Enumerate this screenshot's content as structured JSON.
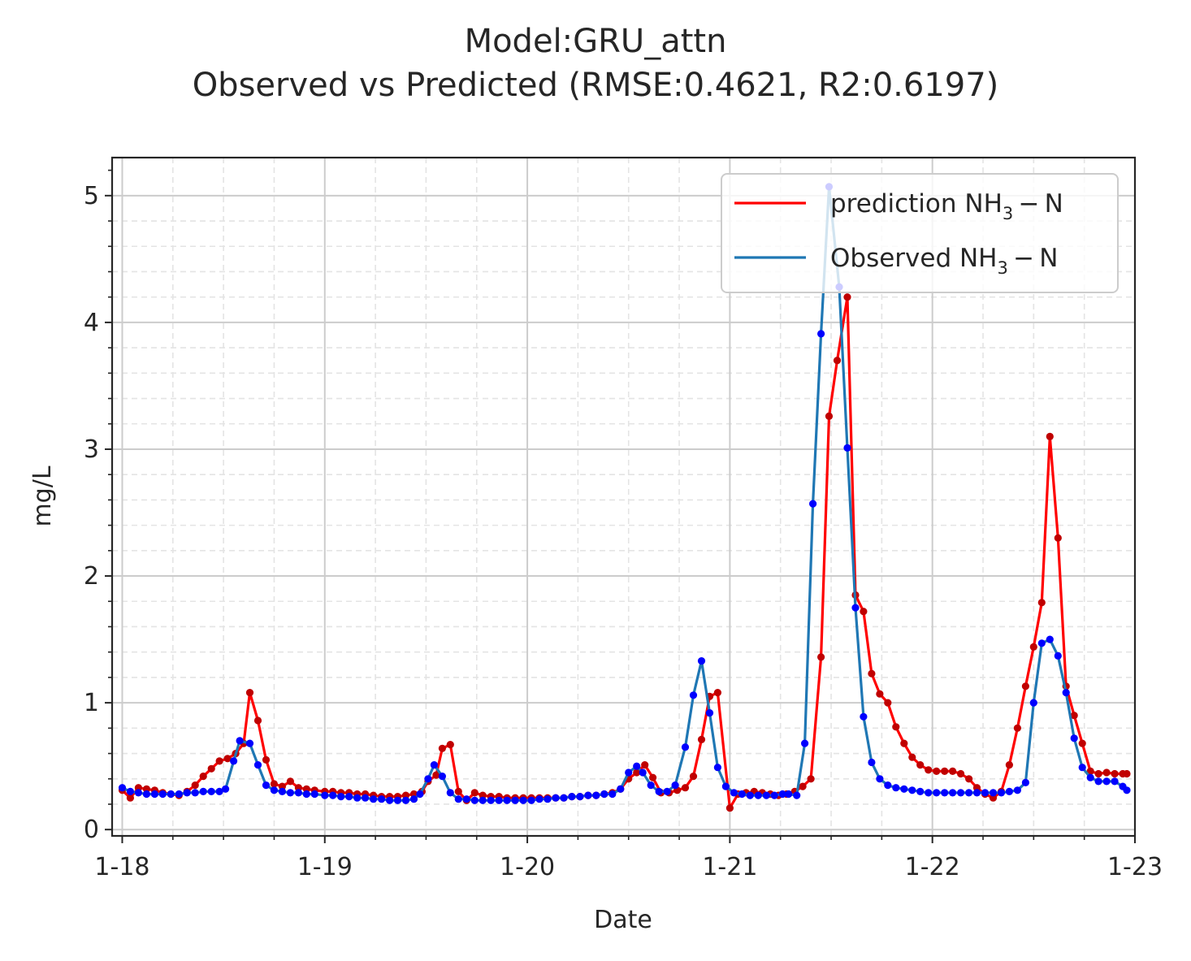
{
  "chart_data": {
    "type": "line",
    "title": "Model:GRU_attn",
    "subtitle": "Observed vs Predicted (RMSE:0.4621, R2:0.6197)",
    "xlabel": "Date",
    "ylabel": "mg/L",
    "x_ticks": [
      "1-18",
      "1-19",
      "1-20",
      "1-21",
      "1-22",
      "1-23"
    ],
    "y_ticks": [
      "0",
      "1",
      "2",
      "3",
      "4",
      "5"
    ],
    "xlim": [
      17.95,
      23.0
    ],
    "ylim": [
      -0.05,
      5.3
    ],
    "grid": true,
    "legend_position": "top-right",
    "series": [
      {
        "name": "prediction NH_3-N",
        "legend_main": "prediction NH",
        "legend_sub": "3",
        "legend_tail": " − N",
        "color": "#ff0000",
        "marker_color": "#c00000",
        "points": [
          [
            18.0,
            0.31
          ],
          [
            18.04,
            0.25
          ],
          [
            18.08,
            0.33
          ],
          [
            18.12,
            0.32
          ],
          [
            18.16,
            0.31
          ],
          [
            18.2,
            0.29
          ],
          [
            18.24,
            0.28
          ],
          [
            18.28,
            0.27
          ],
          [
            18.32,
            0.3
          ],
          [
            18.36,
            0.35
          ],
          [
            18.4,
            0.42
          ],
          [
            18.44,
            0.48
          ],
          [
            18.48,
            0.54
          ],
          [
            18.52,
            0.56
          ],
          [
            18.56,
            0.6
          ],
          [
            18.6,
            0.68
          ],
          [
            18.63,
            1.08
          ],
          [
            18.67,
            0.86
          ],
          [
            18.71,
            0.55
          ],
          [
            18.75,
            0.36
          ],
          [
            18.79,
            0.34
          ],
          [
            18.83,
            0.38
          ],
          [
            18.87,
            0.33
          ],
          [
            18.91,
            0.32
          ],
          [
            18.95,
            0.31
          ],
          [
            19.0,
            0.3
          ],
          [
            19.04,
            0.3
          ],
          [
            19.08,
            0.29
          ],
          [
            19.12,
            0.29
          ],
          [
            19.16,
            0.28
          ],
          [
            19.2,
            0.28
          ],
          [
            19.24,
            0.27
          ],
          [
            19.28,
            0.26
          ],
          [
            19.32,
            0.26
          ],
          [
            19.36,
            0.26
          ],
          [
            19.4,
            0.27
          ],
          [
            19.44,
            0.28
          ],
          [
            19.48,
            0.3
          ],
          [
            19.51,
            0.38
          ],
          [
            19.55,
            0.43
          ],
          [
            19.58,
            0.64
          ],
          [
            19.62,
            0.67
          ],
          [
            19.66,
            0.3
          ],
          [
            19.7,
            0.23
          ],
          [
            19.74,
            0.29
          ],
          [
            19.78,
            0.27
          ],
          [
            19.82,
            0.26
          ],
          [
            19.86,
            0.26
          ],
          [
            19.9,
            0.25
          ],
          [
            19.94,
            0.25
          ],
          [
            19.98,
            0.25
          ],
          [
            20.02,
            0.25
          ],
          [
            20.06,
            0.25
          ],
          [
            20.1,
            0.25
          ],
          [
            20.14,
            0.25
          ],
          [
            20.18,
            0.25
          ],
          [
            20.22,
            0.26
          ],
          [
            20.26,
            0.26
          ],
          [
            20.3,
            0.27
          ],
          [
            20.34,
            0.27
          ],
          [
            20.38,
            0.28
          ],
          [
            20.42,
            0.29
          ],
          [
            20.46,
            0.32
          ],
          [
            20.5,
            0.4
          ],
          [
            20.54,
            0.45
          ],
          [
            20.58,
            0.51
          ],
          [
            20.62,
            0.41
          ],
          [
            20.66,
            0.29
          ],
          [
            20.7,
            0.29
          ],
          [
            20.74,
            0.31
          ],
          [
            20.78,
            0.33
          ],
          [
            20.82,
            0.42
          ],
          [
            20.86,
            0.71
          ],
          [
            20.9,
            1.05
          ],
          [
            20.94,
            1.08
          ],
          [
            21.0,
            0.17
          ],
          [
            21.04,
            0.28
          ],
          [
            21.08,
            0.29
          ],
          [
            21.12,
            0.3
          ],
          [
            21.16,
            0.29
          ],
          [
            21.2,
            0.28
          ],
          [
            21.24,
            0.27
          ],
          [
            21.28,
            0.28
          ],
          [
            21.32,
            0.3
          ],
          [
            21.36,
            0.34
          ],
          [
            21.4,
            0.4
          ],
          [
            21.45,
            1.36
          ],
          [
            21.49,
            3.26
          ],
          [
            21.53,
            3.7
          ],
          [
            21.58,
            4.2
          ],
          [
            21.62,
            1.85
          ],
          [
            21.66,
            1.72
          ],
          [
            21.7,
            1.23
          ],
          [
            21.74,
            1.07
          ],
          [
            21.78,
            1.0
          ],
          [
            21.82,
            0.81
          ],
          [
            21.86,
            0.68
          ],
          [
            21.9,
            0.57
          ],
          [
            21.94,
            0.51
          ],
          [
            21.98,
            0.47
          ],
          [
            22.02,
            0.46
          ],
          [
            22.06,
            0.46
          ],
          [
            22.1,
            0.46
          ],
          [
            22.14,
            0.44
          ],
          [
            22.18,
            0.4
          ],
          [
            22.22,
            0.33
          ],
          [
            22.26,
            0.28
          ],
          [
            22.3,
            0.25
          ],
          [
            22.34,
            0.3
          ],
          [
            22.38,
            0.51
          ],
          [
            22.42,
            0.8
          ],
          [
            22.46,
            1.13
          ],
          [
            22.5,
            1.44
          ],
          [
            22.54,
            1.79
          ],
          [
            22.58,
            3.1
          ],
          [
            22.62,
            2.3
          ],
          [
            22.66,
            1.13
          ],
          [
            22.7,
            0.9
          ],
          [
            22.74,
            0.68
          ],
          [
            22.78,
            0.46
          ],
          [
            22.82,
            0.44
          ],
          [
            22.86,
            0.45
          ],
          [
            22.9,
            0.44
          ],
          [
            22.94,
            0.44
          ],
          [
            22.96,
            0.44
          ]
        ]
      },
      {
        "name": "Observed NH_3-N",
        "legend_main": "Observed NH",
        "legend_sub": "3",
        "legend_tail": " − N",
        "color": "#1f77b4",
        "marker_color": "#0000ff",
        "points": [
          [
            18.0,
            0.33
          ],
          [
            18.04,
            0.3
          ],
          [
            18.08,
            0.29
          ],
          [
            18.12,
            0.28
          ],
          [
            18.16,
            0.28
          ],
          [
            18.2,
            0.28
          ],
          [
            18.24,
            0.28
          ],
          [
            18.28,
            0.28
          ],
          [
            18.32,
            0.29
          ],
          [
            18.36,
            0.29
          ],
          [
            18.4,
            0.3
          ],
          [
            18.44,
            0.3
          ],
          [
            18.48,
            0.3
          ],
          [
            18.51,
            0.32
          ],
          [
            18.55,
            0.54
          ],
          [
            18.58,
            0.7
          ],
          [
            18.63,
            0.68
          ],
          [
            18.67,
            0.51
          ],
          [
            18.71,
            0.35
          ],
          [
            18.75,
            0.31
          ],
          [
            18.79,
            0.3
          ],
          [
            18.83,
            0.29
          ],
          [
            18.87,
            0.29
          ],
          [
            18.91,
            0.28
          ],
          [
            18.95,
            0.28
          ],
          [
            19.0,
            0.27
          ],
          [
            19.04,
            0.27
          ],
          [
            19.08,
            0.26
          ],
          [
            19.12,
            0.26
          ],
          [
            19.16,
            0.25
          ],
          [
            19.2,
            0.25
          ],
          [
            19.24,
            0.24
          ],
          [
            19.28,
            0.24
          ],
          [
            19.32,
            0.23
          ],
          [
            19.36,
            0.23
          ],
          [
            19.4,
            0.23
          ],
          [
            19.44,
            0.24
          ],
          [
            19.47,
            0.28
          ],
          [
            19.51,
            0.4
          ],
          [
            19.54,
            0.51
          ],
          [
            19.58,
            0.42
          ],
          [
            19.62,
            0.29
          ],
          [
            19.66,
            0.24
          ],
          [
            19.7,
            0.24
          ],
          [
            19.74,
            0.23
          ],
          [
            19.78,
            0.23
          ],
          [
            19.82,
            0.23
          ],
          [
            19.86,
            0.23
          ],
          [
            19.9,
            0.23
          ],
          [
            19.94,
            0.23
          ],
          [
            19.98,
            0.23
          ],
          [
            20.02,
            0.23
          ],
          [
            20.06,
            0.24
          ],
          [
            20.1,
            0.24
          ],
          [
            20.14,
            0.25
          ],
          [
            20.18,
            0.25
          ],
          [
            20.22,
            0.26
          ],
          [
            20.26,
            0.26
          ],
          [
            20.3,
            0.27
          ],
          [
            20.34,
            0.27
          ],
          [
            20.38,
            0.28
          ],
          [
            20.42,
            0.28
          ],
          [
            20.46,
            0.32
          ],
          [
            20.5,
            0.45
          ],
          [
            20.54,
            0.5
          ],
          [
            20.57,
            0.45
          ],
          [
            20.61,
            0.35
          ],
          [
            20.65,
            0.3
          ],
          [
            20.69,
            0.3
          ],
          [
            20.73,
            0.35
          ],
          [
            20.78,
            0.65
          ],
          [
            20.82,
            1.06
          ],
          [
            20.86,
            1.33
          ],
          [
            20.9,
            0.92
          ],
          [
            20.94,
            0.49
          ],
          [
            20.98,
            0.34
          ],
          [
            21.02,
            0.29
          ],
          [
            21.06,
            0.28
          ],
          [
            21.1,
            0.27
          ],
          [
            21.14,
            0.27
          ],
          [
            21.18,
            0.27
          ],
          [
            21.22,
            0.27
          ],
          [
            21.26,
            0.28
          ],
          [
            21.29,
            0.28
          ],
          [
            21.33,
            0.27
          ],
          [
            21.37,
            0.68
          ],
          [
            21.41,
            2.57
          ],
          [
            21.45,
            3.91
          ],
          [
            21.49,
            5.07
          ],
          [
            21.54,
            4.28
          ],
          [
            21.58,
            3.01
          ],
          [
            21.62,
            1.75
          ],
          [
            21.66,
            0.89
          ],
          [
            21.7,
            0.53
          ],
          [
            21.74,
            0.4
          ],
          [
            21.78,
            0.35
          ],
          [
            21.82,
            0.33
          ],
          [
            21.86,
            0.32
          ],
          [
            21.9,
            0.31
          ],
          [
            21.94,
            0.3
          ],
          [
            21.98,
            0.29
          ],
          [
            22.02,
            0.29
          ],
          [
            22.06,
            0.29
          ],
          [
            22.1,
            0.29
          ],
          [
            22.14,
            0.29
          ],
          [
            22.18,
            0.29
          ],
          [
            22.22,
            0.29
          ],
          [
            22.26,
            0.29
          ],
          [
            22.3,
            0.29
          ],
          [
            22.34,
            0.29
          ],
          [
            22.38,
            0.3
          ],
          [
            22.42,
            0.31
          ],
          [
            22.46,
            0.37
          ],
          [
            22.5,
            1.0
          ],
          [
            22.54,
            1.47
          ],
          [
            22.58,
            1.5
          ],
          [
            22.62,
            1.37
          ],
          [
            22.66,
            1.08
          ],
          [
            22.7,
            0.72
          ],
          [
            22.74,
            0.49
          ],
          [
            22.78,
            0.41
          ],
          [
            22.82,
            0.38
          ],
          [
            22.86,
            0.38
          ],
          [
            22.9,
            0.38
          ],
          [
            22.94,
            0.34
          ],
          [
            22.96,
            0.31
          ]
        ]
      }
    ]
  }
}
